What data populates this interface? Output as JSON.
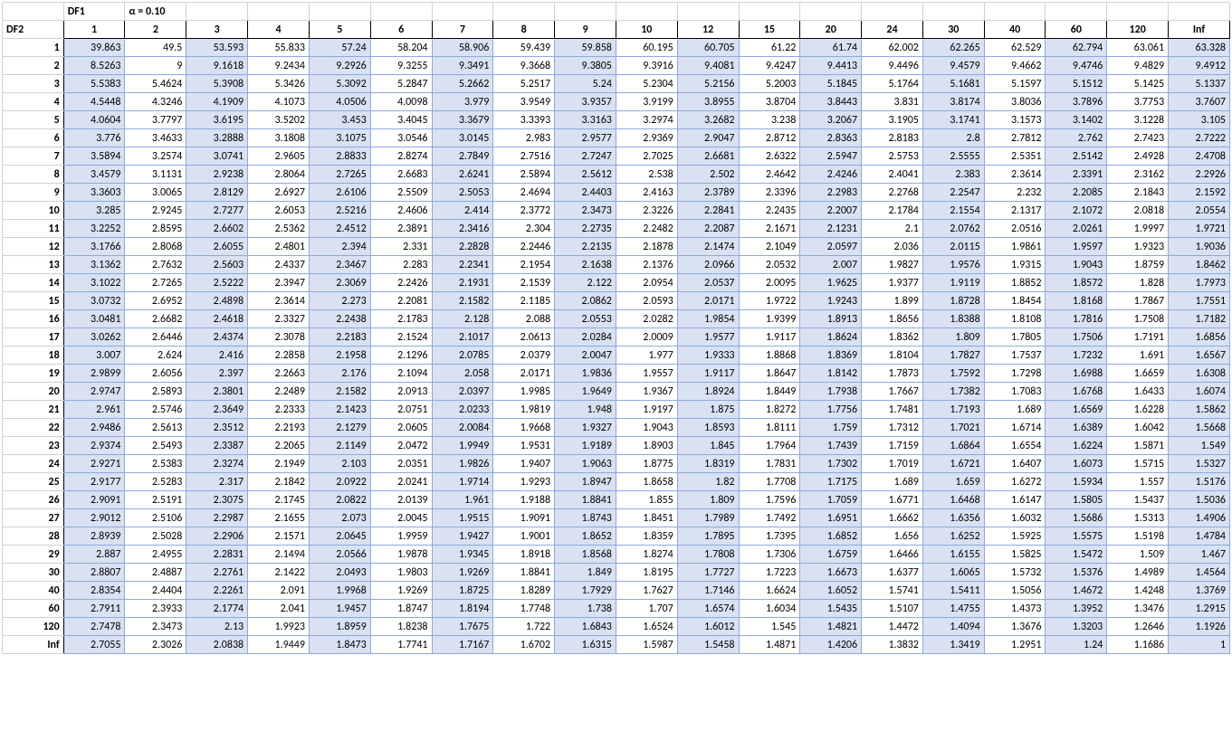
{
  "labels": {
    "df1": "DF1",
    "df2": "DF2",
    "alpha": "α = 0.10"
  },
  "col_headers": [
    "1",
    "2",
    "3",
    "4",
    "5",
    "6",
    "7",
    "8",
    "9",
    "10",
    "12",
    "15",
    "20",
    "24",
    "30",
    "40",
    "60",
    "120",
    "Inf"
  ],
  "row_headers": [
    "1",
    "2",
    "3",
    "4",
    "5",
    "6",
    "7",
    "8",
    "9",
    "10",
    "11",
    "12",
    "13",
    "14",
    "15",
    "16",
    "17",
    "18",
    "19",
    "20",
    "21",
    "22",
    "23",
    "24",
    "25",
    "26",
    "27",
    "28",
    "29",
    "30",
    "40",
    "60",
    "120",
    "Inf"
  ],
  "shaded_cols": [
    0,
    2,
    4,
    6,
    8,
    10,
    12,
    14,
    16,
    18
  ],
  "colors": {
    "shade_bg": "#d9e1f2",
    "cell_border": "#8ea9db",
    "grid": "#d0d0d0"
  },
  "data": [
    [
      "39.863",
      "49.5",
      "53.593",
      "55.833",
      "57.24",
      "58.204",
      "58.906",
      "59.439",
      "59.858",
      "60.195",
      "60.705",
      "61.22",
      "61.74",
      "62.002",
      "62.265",
      "62.529",
      "62.794",
      "63.061",
      "63.328"
    ],
    [
      "8.5263",
      "9",
      "9.1618",
      "9.2434",
      "9.2926",
      "9.3255",
      "9.3491",
      "9.3668",
      "9.3805",
      "9.3916",
      "9.4081",
      "9.4247",
      "9.4413",
      "9.4496",
      "9.4579",
      "9.4662",
      "9.4746",
      "9.4829",
      "9.4912"
    ],
    [
      "5.5383",
      "5.4624",
      "5.3908",
      "5.3426",
      "5.3092",
      "5.2847",
      "5.2662",
      "5.2517",
      "5.24",
      "5.2304",
      "5.2156",
      "5.2003",
      "5.1845",
      "5.1764",
      "5.1681",
      "5.1597",
      "5.1512",
      "5.1425",
      "5.1337"
    ],
    [
      "4.5448",
      "4.3246",
      "4.1909",
      "4.1073",
      "4.0506",
      "4.0098",
      "3.979",
      "3.9549",
      "3.9357",
      "3.9199",
      "3.8955",
      "3.8704",
      "3.8443",
      "3.831",
      "3.8174",
      "3.8036",
      "3.7896",
      "3.7753",
      "3.7607"
    ],
    [
      "4.0604",
      "3.7797",
      "3.6195",
      "3.5202",
      "3.453",
      "3.4045",
      "3.3679",
      "3.3393",
      "3.3163",
      "3.2974",
      "3.2682",
      "3.238",
      "3.2067",
      "3.1905",
      "3.1741",
      "3.1573",
      "3.1402",
      "3.1228",
      "3.105"
    ],
    [
      "3.776",
      "3.4633",
      "3.2888",
      "3.1808",
      "3.1075",
      "3.0546",
      "3.0145",
      "2.983",
      "2.9577",
      "2.9369",
      "2.9047",
      "2.8712",
      "2.8363",
      "2.8183",
      "2.8",
      "2.7812",
      "2.762",
      "2.7423",
      "2.7222"
    ],
    [
      "3.5894",
      "3.2574",
      "3.0741",
      "2.9605",
      "2.8833",
      "2.8274",
      "2.7849",
      "2.7516",
      "2.7247",
      "2.7025",
      "2.6681",
      "2.6322",
      "2.5947",
      "2.5753",
      "2.5555",
      "2.5351",
      "2.5142",
      "2.4928",
      "2.4708"
    ],
    [
      "3.4579",
      "3.1131",
      "2.9238",
      "2.8064",
      "2.7265",
      "2.6683",
      "2.6241",
      "2.5894",
      "2.5612",
      "2.538",
      "2.502",
      "2.4642",
      "2.4246",
      "2.4041",
      "2.383",
      "2.3614",
      "2.3391",
      "2.3162",
      "2.2926"
    ],
    [
      "3.3603",
      "3.0065",
      "2.8129",
      "2.6927",
      "2.6106",
      "2.5509",
      "2.5053",
      "2.4694",
      "2.4403",
      "2.4163",
      "2.3789",
      "2.3396",
      "2.2983",
      "2.2768",
      "2.2547",
      "2.232",
      "2.2085",
      "2.1843",
      "2.1592"
    ],
    [
      "3.285",
      "2.9245",
      "2.7277",
      "2.6053",
      "2.5216",
      "2.4606",
      "2.414",
      "2.3772",
      "2.3473",
      "2.3226",
      "2.2841",
      "2.2435",
      "2.2007",
      "2.1784",
      "2.1554",
      "2.1317",
      "2.1072",
      "2.0818",
      "2.0554"
    ],
    [
      "3.2252",
      "2.8595",
      "2.6602",
      "2.5362",
      "2.4512",
      "2.3891",
      "2.3416",
      "2.304",
      "2.2735",
      "2.2482",
      "2.2087",
      "2.1671",
      "2.1231",
      "2.1",
      "2.0762",
      "2.0516",
      "2.0261",
      "1.9997",
      "1.9721"
    ],
    [
      "3.1766",
      "2.8068",
      "2.6055",
      "2.4801",
      "2.394",
      "2.331",
      "2.2828",
      "2.2446",
      "2.2135",
      "2.1878",
      "2.1474",
      "2.1049",
      "2.0597",
      "2.036",
      "2.0115",
      "1.9861",
      "1.9597",
      "1.9323",
      "1.9036"
    ],
    [
      "3.1362",
      "2.7632",
      "2.5603",
      "2.4337",
      "2.3467",
      "2.283",
      "2.2341",
      "2.1954",
      "2.1638",
      "2.1376",
      "2.0966",
      "2.0532",
      "2.007",
      "1.9827",
      "1.9576",
      "1.9315",
      "1.9043",
      "1.8759",
      "1.8462"
    ],
    [
      "3.1022",
      "2.7265",
      "2.5222",
      "2.3947",
      "2.3069",
      "2.2426",
      "2.1931",
      "2.1539",
      "2.122",
      "2.0954",
      "2.0537",
      "2.0095",
      "1.9625",
      "1.9377",
      "1.9119",
      "1.8852",
      "1.8572",
      "1.828",
      "1.7973"
    ],
    [
      "3.0732",
      "2.6952",
      "2.4898",
      "2.3614",
      "2.273",
      "2.2081",
      "2.1582",
      "2.1185",
      "2.0862",
      "2.0593",
      "2.0171",
      "1.9722",
      "1.9243",
      "1.899",
      "1.8728",
      "1.8454",
      "1.8168",
      "1.7867",
      "1.7551"
    ],
    [
      "3.0481",
      "2.6682",
      "2.4618",
      "2.3327",
      "2.2438",
      "2.1783",
      "2.128",
      "2.088",
      "2.0553",
      "2.0282",
      "1.9854",
      "1.9399",
      "1.8913",
      "1.8656",
      "1.8388",
      "1.8108",
      "1.7816",
      "1.7508",
      "1.7182"
    ],
    [
      "3.0262",
      "2.6446",
      "2.4374",
      "2.3078",
      "2.2183",
      "2.1524",
      "2.1017",
      "2.0613",
      "2.0284",
      "2.0009",
      "1.9577",
      "1.9117",
      "1.8624",
      "1.8362",
      "1.809",
      "1.7805",
      "1.7506",
      "1.7191",
      "1.6856"
    ],
    [
      "3.007",
      "2.624",
      "2.416",
      "2.2858",
      "2.1958",
      "2.1296",
      "2.0785",
      "2.0379",
      "2.0047",
      "1.977",
      "1.9333",
      "1.8868",
      "1.8369",
      "1.8104",
      "1.7827",
      "1.7537",
      "1.7232",
      "1.691",
      "1.6567"
    ],
    [
      "2.9899",
      "2.6056",
      "2.397",
      "2.2663",
      "2.176",
      "2.1094",
      "2.058",
      "2.0171",
      "1.9836",
      "1.9557",
      "1.9117",
      "1.8647",
      "1.8142",
      "1.7873",
      "1.7592",
      "1.7298",
      "1.6988",
      "1.6659",
      "1.6308"
    ],
    [
      "2.9747",
      "2.5893",
      "2.3801",
      "2.2489",
      "2.1582",
      "2.0913",
      "2.0397",
      "1.9985",
      "1.9649",
      "1.9367",
      "1.8924",
      "1.8449",
      "1.7938",
      "1.7667",
      "1.7382",
      "1.7083",
      "1.6768",
      "1.6433",
      "1.6074"
    ],
    [
      "2.961",
      "2.5746",
      "2.3649",
      "2.2333",
      "2.1423",
      "2.0751",
      "2.0233",
      "1.9819",
      "1.948",
      "1.9197",
      "1.875",
      "1.8272",
      "1.7756",
      "1.7481",
      "1.7193",
      "1.689",
      "1.6569",
      "1.6228",
      "1.5862"
    ],
    [
      "2.9486",
      "2.5613",
      "2.3512",
      "2.2193",
      "2.1279",
      "2.0605",
      "2.0084",
      "1.9668",
      "1.9327",
      "1.9043",
      "1.8593",
      "1.8111",
      "1.759",
      "1.7312",
      "1.7021",
      "1.6714",
      "1.6389",
      "1.6042",
      "1.5668"
    ],
    [
      "2.9374",
      "2.5493",
      "2.3387",
      "2.2065",
      "2.1149",
      "2.0472",
      "1.9949",
      "1.9531",
      "1.9189",
      "1.8903",
      "1.845",
      "1.7964",
      "1.7439",
      "1.7159",
      "1.6864",
      "1.6554",
      "1.6224",
      "1.5871",
      "1.549"
    ],
    [
      "2.9271",
      "2.5383",
      "2.3274",
      "2.1949",
      "2.103",
      "2.0351",
      "1.9826",
      "1.9407",
      "1.9063",
      "1.8775",
      "1.8319",
      "1.7831",
      "1.7302",
      "1.7019",
      "1.6721",
      "1.6407",
      "1.6073",
      "1.5715",
      "1.5327"
    ],
    [
      "2.9177",
      "2.5283",
      "2.317",
      "2.1842",
      "2.0922",
      "2.0241",
      "1.9714",
      "1.9293",
      "1.8947",
      "1.8658",
      "1.82",
      "1.7708",
      "1.7175",
      "1.689",
      "1.659",
      "1.6272",
      "1.5934",
      "1.557",
      "1.5176"
    ],
    [
      "2.9091",
      "2.5191",
      "2.3075",
      "2.1745",
      "2.0822",
      "2.0139",
      "1.961",
      "1.9188",
      "1.8841",
      "1.855",
      "1.809",
      "1.7596",
      "1.7059",
      "1.6771",
      "1.6468",
      "1.6147",
      "1.5805",
      "1.5437",
      "1.5036"
    ],
    [
      "2.9012",
      "2.5106",
      "2.2987",
      "2.1655",
      "2.073",
      "2.0045",
      "1.9515",
      "1.9091",
      "1.8743",
      "1.8451",
      "1.7989",
      "1.7492",
      "1.6951",
      "1.6662",
      "1.6356",
      "1.6032",
      "1.5686",
      "1.5313",
      "1.4906"
    ],
    [
      "2.8939",
      "2.5028",
      "2.2906",
      "2.1571",
      "2.0645",
      "1.9959",
      "1.9427",
      "1.9001",
      "1.8652",
      "1.8359",
      "1.7895",
      "1.7395",
      "1.6852",
      "1.656",
      "1.6252",
      "1.5925",
      "1.5575",
      "1.5198",
      "1.4784"
    ],
    [
      "2.887",
      "2.4955",
      "2.2831",
      "2.1494",
      "2.0566",
      "1.9878",
      "1.9345",
      "1.8918",
      "1.8568",
      "1.8274",
      "1.7808",
      "1.7306",
      "1.6759",
      "1.6466",
      "1.6155",
      "1.5825",
      "1.5472",
      "1.509",
      "1.467"
    ],
    [
      "2.8807",
      "2.4887",
      "2.2761",
      "2.1422",
      "2.0493",
      "1.9803",
      "1.9269",
      "1.8841",
      "1.849",
      "1.8195",
      "1.7727",
      "1.7223",
      "1.6673",
      "1.6377",
      "1.6065",
      "1.5732",
      "1.5376",
      "1.4989",
      "1.4564"
    ],
    [
      "2.8354",
      "2.4404",
      "2.2261",
      "2.091",
      "1.9968",
      "1.9269",
      "1.8725",
      "1.8289",
      "1.7929",
      "1.7627",
      "1.7146",
      "1.6624",
      "1.6052",
      "1.5741",
      "1.5411",
      "1.5056",
      "1.4672",
      "1.4248",
      "1.3769"
    ],
    [
      "2.7911",
      "2.3933",
      "2.1774",
      "2.041",
      "1.9457",
      "1.8747",
      "1.8194",
      "1.7748",
      "1.738",
      "1.707",
      "1.6574",
      "1.6034",
      "1.5435",
      "1.5107",
      "1.4755",
      "1.4373",
      "1.3952",
      "1.3476",
      "1.2915"
    ],
    [
      "2.7478",
      "2.3473",
      "2.13",
      "1.9923",
      "1.8959",
      "1.8238",
      "1.7675",
      "1.722",
      "1.6843",
      "1.6524",
      "1.6012",
      "1.545",
      "1.4821",
      "1.4472",
      "1.4094",
      "1.3676",
      "1.3203",
      "1.2646",
      "1.1926"
    ],
    [
      "2.7055",
      "2.3026",
      "2.0838",
      "1.9449",
      "1.8473",
      "1.7741",
      "1.7167",
      "1.6702",
      "1.6315",
      "1.5987",
      "1.5458",
      "1.4871",
      "1.4206",
      "1.3832",
      "1.3419",
      "1.2951",
      "1.24",
      "1.1686",
      "1"
    ]
  ]
}
